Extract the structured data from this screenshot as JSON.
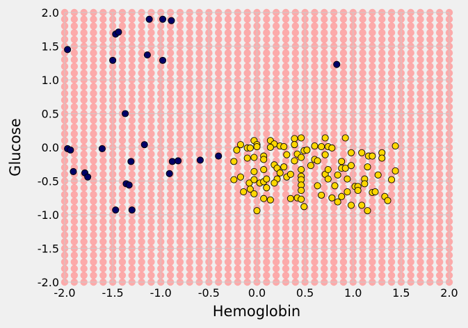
{
  "chart_data": {
    "type": "scatter",
    "title": "",
    "xlabel": "Hemoglobin",
    "ylabel": "Glucose",
    "xlim": [
      -2.0,
      2.0
    ],
    "ylim": [
      -2.0,
      2.0
    ],
    "xticks": [
      "-2.0",
      "-1.5",
      "-1.0",
      "-0.5",
      "0.0",
      "0.5",
      "1.0",
      "1.5",
      "2.0"
    ],
    "yticks": [
      "2.0",
      "1.5",
      "1.0",
      "0.5",
      "0.0",
      "-0.5",
      "-1.0",
      "-1.5",
      "-2.0"
    ],
    "grid": true,
    "background_grid": {
      "step": 0.1,
      "color": "#ff9999"
    },
    "colors": {
      "background": "#f0f0f0",
      "gridline": "#cbcbcb",
      "class_a": "#000066",
      "class_b": "#ffd700",
      "edge": "#000000"
    },
    "series": [
      {
        "name": "class_a",
        "color": "#000066",
        "points": [
          [
            -1.97,
            1.45
          ],
          [
            -1.97,
            -0.02
          ],
          [
            -1.94,
            -0.04
          ],
          [
            -1.91,
            -0.36
          ],
          [
            -1.79,
            -0.38
          ],
          [
            -1.76,
            -0.44
          ],
          [
            -1.61,
            -0.02
          ],
          [
            -1.5,
            1.29
          ],
          [
            -1.47,
            1.68
          ],
          [
            -1.44,
            1.71
          ],
          [
            -1.47,
            -0.93
          ],
          [
            -1.37,
            0.5
          ],
          [
            -1.36,
            -0.54
          ],
          [
            -1.33,
            -0.56
          ],
          [
            -1.31,
            -0.21
          ],
          [
            -1.3,
            -0.93
          ],
          [
            -1.17,
            0.04
          ],
          [
            -1.14,
            1.37
          ],
          [
            -1.12,
            1.9
          ],
          [
            -0.98,
            1.9
          ],
          [
            -0.98,
            1.29
          ],
          [
            -0.91,
            -0.39
          ],
          [
            -0.89,
            1.88
          ],
          [
            -0.88,
            -0.21
          ],
          [
            -0.82,
            -0.2
          ],
          [
            -0.59,
            -0.19
          ],
          [
            -0.4,
            -0.13
          ],
          [
            0.83,
            1.23
          ]
        ]
      },
      {
        "name": "class_b",
        "color": "#ffd700",
        "points": [
          [
            -0.03,
            0.1
          ],
          [
            -0.17,
            0.04
          ],
          [
            -0.21,
            -0.04
          ],
          [
            -0.1,
            -0.01
          ],
          [
            -0.07,
            -0.01
          ],
          [
            0.0,
            0.04
          ],
          [
            0.0,
            0.01
          ],
          [
            0.14,
            0.1
          ],
          [
            0.18,
            0.05
          ],
          [
            0.14,
            0.0
          ],
          [
            0.24,
            0.02
          ],
          [
            0.28,
            0.01
          ],
          [
            0.39,
            0.13
          ],
          [
            0.46,
            0.14
          ],
          [
            0.39,
            0.04
          ],
          [
            0.71,
            0.14
          ],
          [
            0.6,
            0.02
          ],
          [
            0.67,
            0.01
          ],
          [
            0.74,
            0.01
          ],
          [
            0.78,
            -0.01
          ],
          [
            -0.24,
            -0.21
          ],
          [
            -0.1,
            -0.16
          ],
          [
            -0.03,
            -0.15
          ],
          [
            0.07,
            -0.13
          ],
          [
            0.07,
            -0.18
          ],
          [
            0.31,
            -0.11
          ],
          [
            0.42,
            -0.1
          ],
          [
            0.49,
            -0.05
          ],
          [
            0.52,
            -0.04
          ],
          [
            0.39,
            -0.2
          ],
          [
            0.46,
            -0.15
          ],
          [
            0.6,
            -0.18
          ],
          [
            0.63,
            -0.2
          ],
          [
            0.71,
            -0.11
          ],
          [
            0.18,
            -0.26
          ],
          [
            0.21,
            -0.31
          ],
          [
            0.28,
            -0.29
          ],
          [
            -0.03,
            -0.36
          ],
          [
            0.07,
            -0.33
          ],
          [
            0.24,
            -0.38
          ],
          [
            0.56,
            -0.27
          ],
          [
            0.46,
            -0.33
          ],
          [
            -0.24,
            -0.48
          ],
          [
            -0.17,
            -0.44
          ],
          [
            -0.08,
            -0.53
          ],
          [
            -0.03,
            -0.48
          ],
          [
            0.03,
            -0.53
          ],
          [
            0.07,
            -0.51
          ],
          [
            0.1,
            -0.47
          ],
          [
            0.1,
            -0.6
          ],
          [
            0.21,
            -0.47
          ],
          [
            0.18,
            -0.53
          ],
          [
            0.31,
            -0.44
          ],
          [
            0.35,
            -0.4
          ],
          [
            0.46,
            -0.43
          ],
          [
            0.46,
            -0.48
          ],
          [
            0.46,
            -0.56
          ],
          [
            0.46,
            -0.64
          ],
          [
            0.63,
            -0.57
          ],
          [
            0.71,
            -0.4
          ],
          [
            0.74,
            -0.33
          ],
          [
            0.74,
            -0.47
          ],
          [
            -0.14,
            -0.66
          ],
          [
            -0.07,
            -0.62
          ],
          [
            -0.03,
            -0.69
          ],
          [
            0.07,
            -0.76
          ],
          [
            0.14,
            -0.78
          ],
          [
            0.35,
            -0.76
          ],
          [
            0.42,
            -0.75
          ],
          [
            0.46,
            -0.77
          ],
          [
            0.49,
            -0.88
          ],
          [
            0.67,
            -0.71
          ],
          [
            0.78,
            -0.75
          ],
          [
            0.0,
            -0.94
          ],
          [
            0.92,
            0.14
          ],
          [
            1.44,
            0.02
          ],
          [
            0.98,
            -0.08
          ],
          [
            1.09,
            -0.08
          ],
          [
            1.16,
            -0.13
          ],
          [
            1.2,
            -0.13
          ],
          [
            1.3,
            -0.08
          ],
          [
            1.3,
            -0.16
          ],
          [
            0.88,
            -0.21
          ],
          [
            0.98,
            -0.27
          ],
          [
            0.88,
            -0.31
          ],
          [
            0.92,
            -0.31
          ],
          [
            1.15,
            -0.29
          ],
          [
            1.44,
            -0.35
          ],
          [
            0.84,
            -0.41
          ],
          [
            0.94,
            -0.47
          ],
          [
            1.12,
            -0.47
          ],
          [
            1.26,
            -0.41
          ],
          [
            1.4,
            -0.48
          ],
          [
            0.81,
            -0.57
          ],
          [
            1.02,
            -0.58
          ],
          [
            1.05,
            -0.58
          ],
          [
            1.12,
            -0.54
          ],
          [
            1.05,
            -0.64
          ],
          [
            0.94,
            -0.66
          ],
          [
            1.2,
            -0.67
          ],
          [
            1.23,
            -0.66
          ],
          [
            0.88,
            -0.73
          ],
          [
            0.84,
            -0.81
          ],
          [
            1.33,
            -0.73
          ],
          [
            1.36,
            -0.79
          ],
          [
            0.98,
            -0.86
          ],
          [
            1.09,
            -0.86
          ],
          [
            1.15,
            -0.94
          ]
        ]
      }
    ]
  }
}
